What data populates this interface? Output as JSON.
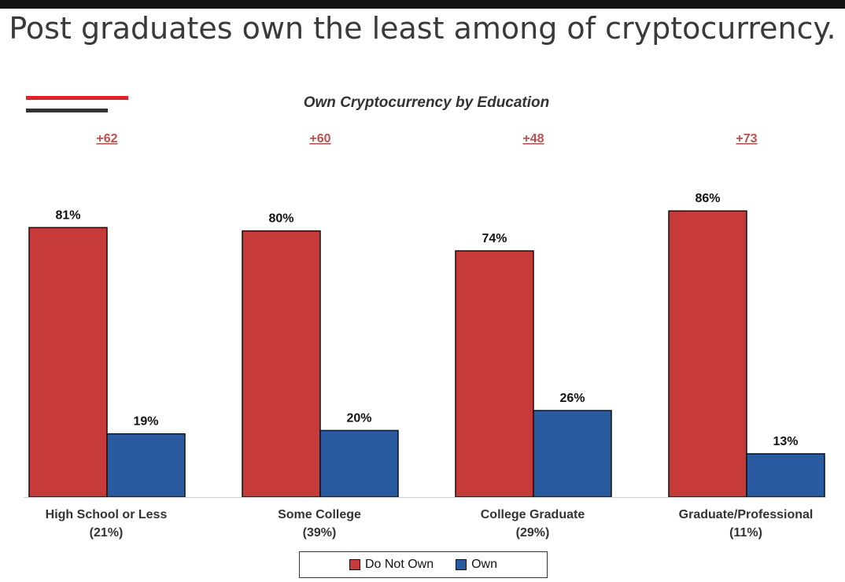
{
  "headline": "Post graduates own the least among of cryptocurrency.",
  "colors": {
    "do_not_own": "#c73a3a",
    "own": "#2a5aa0",
    "accent_red": "#e32028",
    "accent_dark": "#333333",
    "diff": "#c0504d"
  },
  "chart_data": {
    "type": "bar",
    "title": "Own Cryptocurrency by Education",
    "xlabel": "",
    "ylabel": "",
    "ylim": [
      0,
      100
    ],
    "grid": false,
    "legend_position": "bottom",
    "categories": [
      {
        "name": "High School or Less",
        "share": "(21%)",
        "diff": "+62"
      },
      {
        "name": "Some College",
        "share": "(39%)",
        "diff": "+60"
      },
      {
        "name": "College Graduate",
        "share": "(29%)",
        "diff": "+48"
      },
      {
        "name": "Graduate/Professional",
        "share": "(11%)",
        "diff": "+73"
      }
    ],
    "series": [
      {
        "name": "Do Not Own",
        "values": [
          81,
          80,
          74,
          86
        ],
        "labels": [
          "81%",
          "80%",
          "74%",
          "86%"
        ]
      },
      {
        "name": "Own",
        "values": [
          19,
          20,
          26,
          13
        ],
        "labels": [
          "19%",
          "20%",
          "26%",
          "13%"
        ]
      }
    ]
  }
}
